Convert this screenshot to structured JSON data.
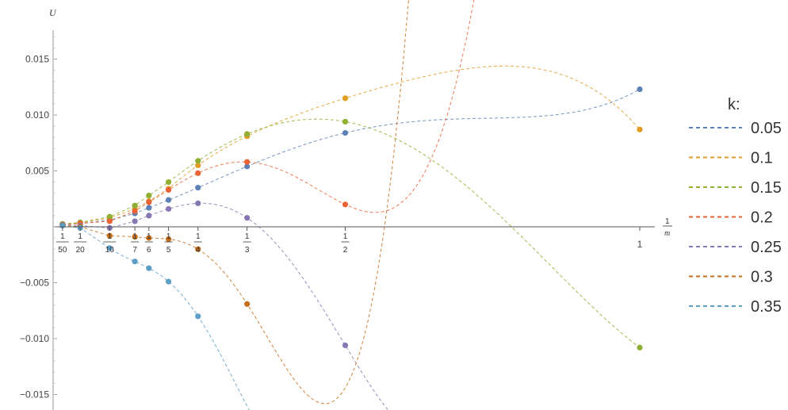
{
  "chart_data": {
    "type": "scatter",
    "y_axis_label": "U",
    "x_axis_label_num": "1",
    "x_axis_label_den": "m",
    "xlim": [
      0,
      1
    ],
    "ylim": [
      -0.016,
      0.018
    ],
    "y_ticks": [
      -0.015,
      -0.01,
      -0.005,
      0.005,
      0.01,
      0.015
    ],
    "y_tick_labels": [
      "−0.015",
      "−0.010",
      "−0.005",
      "0.005",
      "0.010",
      "0.015"
    ],
    "x_ticks": [
      {
        "value": 0.02,
        "num": "1",
        "den": "50"
      },
      {
        "value": 0.05,
        "num": "1",
        "den": "20"
      },
      {
        "value": 0.1,
        "num": "1",
        "den": "10"
      },
      {
        "value": 0.142857,
        "num": "1",
        "den": "7"
      },
      {
        "value": 0.166667,
        "num": "1",
        "den": "6"
      },
      {
        "value": 0.2,
        "num": "1",
        "den": "5"
      },
      {
        "value": 0.25,
        "num": "1",
        "den": "4"
      },
      {
        "value": 0.333333,
        "num": "1",
        "den": "3"
      },
      {
        "value": 0.5,
        "num": "1",
        "den": "2"
      },
      {
        "value": 1,
        "num": "1",
        "den": ""
      }
    ],
    "legend_title": "k:",
    "legend_position": "right",
    "x": [
      0.02,
      0.05,
      0.1,
      0.142857,
      0.166667,
      0.2,
      0.25,
      0.333333,
      0.5,
      1
    ],
    "series": [
      {
        "name": "0.05",
        "color": "#5E81B5",
        "values": [
          0.00025,
          0.0003,
          0.0006,
          0.0012,
          0.0017,
          0.0024,
          0.0035,
          0.0054,
          0.0084,
          0.0123
        ]
      },
      {
        "name": "0.1",
        "color": "#E19C24",
        "values": [
          0.00025,
          0.00035,
          0.0008,
          0.0016,
          0.0023,
          0.0034,
          0.0055,
          0.0081,
          0.0115,
          0.0087
        ]
      },
      {
        "name": "0.15",
        "color": "#8FB032",
        "values": [
          0.00025,
          0.0004,
          0.0009,
          0.0019,
          0.0028,
          0.004,
          0.0059,
          0.0083,
          0.0094,
          -0.0108
        ]
      },
      {
        "name": "0.2",
        "color": "#EB6235",
        "values": [
          0.0002,
          0.0003,
          0.0005,
          0.0014,
          0.0022,
          0.0033,
          0.0048,
          0.0058,
          0.002,
          null
        ]
      },
      {
        "name": "0.25",
        "color": "#8778B3",
        "values": [
          0.0002,
          0.0001,
          -0.0001,
          0.0005,
          0.001,
          0.0016,
          0.0021,
          0.0008,
          -0.0106,
          null
        ]
      },
      {
        "name": "0.3",
        "color": "#C56E1A",
        "values": [
          0.00015,
          0.0,
          -0.0008,
          -0.0009,
          -0.001,
          -0.0011,
          -0.002,
          -0.0069,
          null,
          null
        ]
      },
      {
        "name": "0.35",
        "color": "#5D9EC7",
        "values": [
          0.0001,
          -0.0001,
          -0.0019,
          -0.0031,
          -0.0037,
          -0.0049,
          -0.008,
          null,
          null,
          null
        ]
      }
    ]
  }
}
